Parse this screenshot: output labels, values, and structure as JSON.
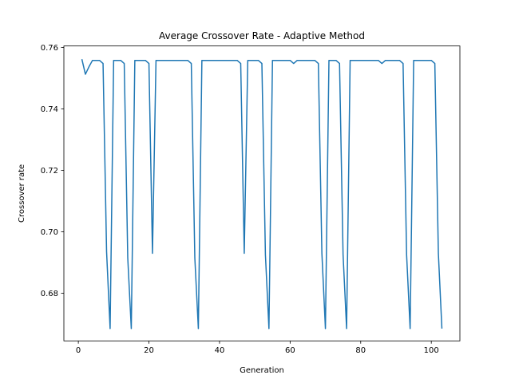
{
  "chart_data": {
    "type": "line",
    "title": "Average Crossover Rate - Adaptive Method",
    "xlabel": "Generation",
    "ylabel": "Crossover rate",
    "xlim": [
      -4.1,
      108.1
    ],
    "ylim": [
      0.6645,
      0.7605
    ],
    "xticks": [
      0,
      20,
      40,
      60,
      80,
      100
    ],
    "yticks": [
      0.68,
      0.7,
      0.72,
      0.74,
      0.76
    ],
    "ytick_labels": [
      "0.68",
      "0.70",
      "0.72",
      "0.74",
      "0.76"
    ],
    "grid": false,
    "series": [
      {
        "color": "#1f77b4",
        "x": [
          1,
          2,
          3,
          4,
          5,
          6,
          7,
          8,
          9,
          10,
          11,
          12,
          13,
          14,
          15,
          16,
          17,
          18,
          19,
          20,
          21,
          22,
          23,
          24,
          25,
          26,
          27,
          28,
          29,
          30,
          31,
          32,
          33,
          34,
          35,
          36,
          37,
          38,
          39,
          40,
          41,
          42,
          43,
          44,
          45,
          46,
          47,
          48,
          49,
          50,
          51,
          52,
          53,
          54,
          55,
          56,
          57,
          58,
          59,
          60,
          61,
          62,
          63,
          64,
          65,
          66,
          67,
          68,
          69,
          70,
          71,
          72,
          73,
          74,
          75,
          76,
          77,
          78,
          79,
          80,
          81,
          82,
          83,
          84,
          85,
          86,
          87,
          88,
          89,
          90,
          91,
          92,
          93,
          94,
          95,
          96,
          97,
          98,
          99,
          100,
          101,
          102,
          103
        ],
        "y": [
          0.7562,
          0.7513,
          0.7537,
          0.7558,
          0.7558,
          0.7558,
          0.7548,
          0.6935,
          0.6685,
          0.7558,
          0.7558,
          0.7558,
          0.7548,
          0.6915,
          0.6685,
          0.7558,
          0.7558,
          0.7558,
          0.7558,
          0.7548,
          0.693,
          0.7558,
          0.7558,
          0.7558,
          0.7558,
          0.7558,
          0.7558,
          0.7558,
          0.7558,
          0.7558,
          0.7558,
          0.7548,
          0.6915,
          0.6685,
          0.7558,
          0.7558,
          0.7558,
          0.7558,
          0.7558,
          0.7558,
          0.7558,
          0.7558,
          0.7558,
          0.7558,
          0.7558,
          0.7548,
          0.693,
          0.7558,
          0.7558,
          0.7558,
          0.7558,
          0.7548,
          0.6925,
          0.6685,
          0.7558,
          0.7558,
          0.7558,
          0.7558,
          0.7558,
          0.7558,
          0.7548,
          0.7558,
          0.7558,
          0.7558,
          0.7558,
          0.7558,
          0.7558,
          0.7548,
          0.693,
          0.6685,
          0.7558,
          0.7558,
          0.7558,
          0.7548,
          0.6925,
          0.6685,
          0.7558,
          0.7558,
          0.7558,
          0.7558,
          0.7558,
          0.7558,
          0.7558,
          0.7558,
          0.7558,
          0.7548,
          0.7558,
          0.7558,
          0.7558,
          0.7558,
          0.7558,
          0.7548,
          0.6925,
          0.6685,
          0.7558,
          0.7558,
          0.7558,
          0.7558,
          0.7558,
          0.7558,
          0.7548,
          0.693,
          0.6685
        ]
      }
    ]
  }
}
